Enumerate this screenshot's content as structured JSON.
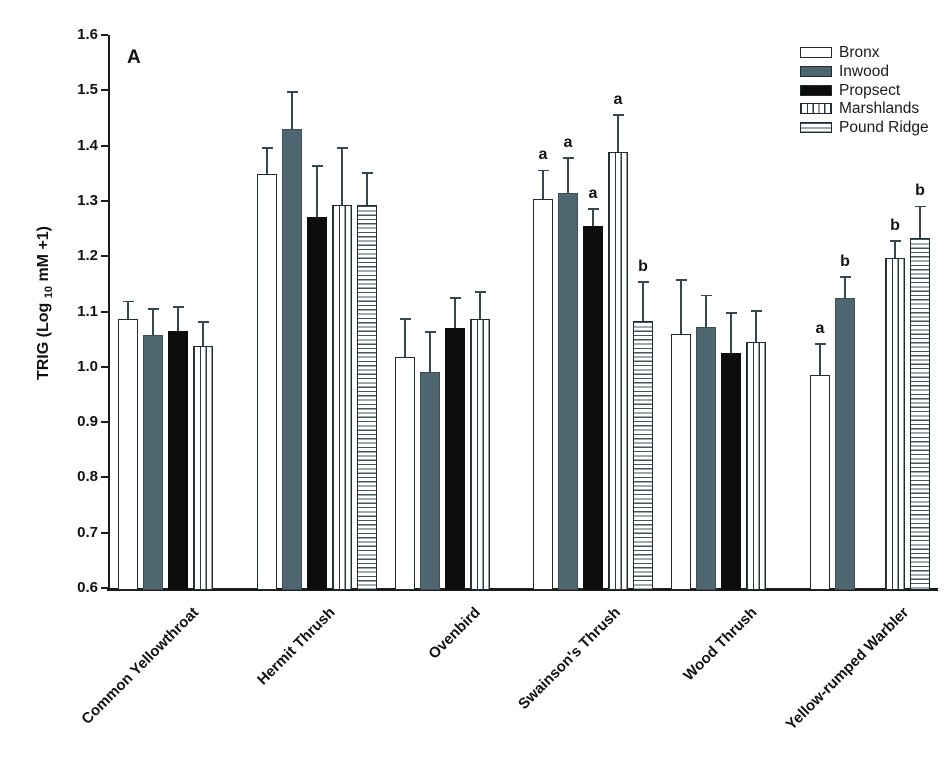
{
  "figure": {
    "panel_label": "A",
    "background_color": "#ffffff",
    "axis_color": "#1c1c1c"
  },
  "chart_data": {
    "type": "bar",
    "title": "",
    "ylabel_parts": {
      "prefix": "TRIG (Log ",
      "sub": "10",
      "suffix": " mM +1)"
    },
    "ylim": [
      0.6,
      1.6
    ],
    "grid": false,
    "legend_position": "top-right",
    "yticks": [
      "1.6",
      "1.5",
      "1.4",
      "1.3",
      "1.2",
      "1.1",
      "1.0",
      "0.9",
      "0.8",
      "0.7",
      "0.6"
    ],
    "series_names": [
      "Bronx",
      "Inwood",
      "Propsect",
      "Marshlands",
      "Pound Ridge"
    ],
    "series_styles": [
      {
        "name": "Bronx",
        "fill_class": "fill-white",
        "color": "#ffffff"
      },
      {
        "name": "Inwood",
        "fill_class": "fill-gray",
        "color": "#4d6670"
      },
      {
        "name": "Propsect",
        "fill_class": "fill-black",
        "color": "#0d0d0d"
      },
      {
        "name": "Marshlands",
        "fill_class": "fill-vstripe",
        "color": "vertical-stripes"
      },
      {
        "name": "Pound Ridge",
        "fill_class": "fill-hstripe",
        "color": "horizontal-stripes"
      }
    ],
    "categories": [
      "Common Yellowthroat",
      "Hermit Thrush",
      "Ovenbird",
      "Swainson's Thrush",
      "Wood Thrush",
      "Yellow-rumped Warbler"
    ],
    "groups": [
      {
        "label": "Common Yellowthroat",
        "x": 118,
        "label_anchor_x": 190,
        "bars": [
          {
            "site": "Bronx",
            "slot": 0,
            "value": 1.086,
            "error_top": 1.118
          },
          {
            "site": "Inwood",
            "slot": 1,
            "value": 1.057,
            "error_top": 1.104
          },
          {
            "site": "Propsect",
            "slot": 2,
            "value": 1.065,
            "error_top": 1.108
          },
          {
            "site": "Marshlands",
            "slot": 3,
            "value": 1.037,
            "error_top": 1.081
          }
        ]
      },
      {
        "label": "Hermit Thrush",
        "x": 257,
        "label_anchor_x": 327,
        "bars": [
          {
            "site": "Bronx",
            "slot": 0,
            "value": 1.348,
            "error_top": 1.395
          },
          {
            "site": "Inwood",
            "slot": 1,
            "value": 1.43,
            "error_top": 1.497
          },
          {
            "site": "Propsect",
            "slot": 2,
            "value": 1.271,
            "error_top": 1.363
          },
          {
            "site": "Marshlands",
            "slot": 3,
            "value": 1.293,
            "error_top": 1.396
          },
          {
            "site": "Pound Ridge",
            "slot": 4,
            "value": 1.292,
            "error_top": 1.351
          }
        ]
      },
      {
        "label": "Ovenbird",
        "x": 395,
        "label_anchor_x": 472,
        "bars": [
          {
            "site": "Bronx",
            "slot": 0,
            "value": 1.017,
            "error_top": 1.087
          },
          {
            "site": "Inwood",
            "slot": 1,
            "value": 0.99,
            "error_top": 1.063
          },
          {
            "site": "Propsect",
            "slot": 2,
            "value": 1.071,
            "error_top": 1.124
          },
          {
            "site": "Marshlands",
            "slot": 3,
            "value": 1.086,
            "error_top": 1.135
          }
        ]
      },
      {
        "label": "Swainson's Thrush",
        "x": 533,
        "label_anchor_x": 612,
        "bars": [
          {
            "site": "Bronx",
            "slot": 0,
            "value": 1.303,
            "error_top": 1.355,
            "sig": "a"
          },
          {
            "site": "Inwood",
            "slot": 1,
            "value": 1.314,
            "error_top": 1.377,
            "sig": "a"
          },
          {
            "site": "Propsect",
            "slot": 2,
            "value": 1.254,
            "error_top": 1.285,
            "sig": "a"
          },
          {
            "site": "Marshlands",
            "slot": 3,
            "value": 1.389,
            "error_top": 1.455,
            "sig": "a"
          },
          {
            "site": "Pound Ridge",
            "slot": 4,
            "value": 1.082,
            "error_top": 1.154,
            "sig": "b"
          }
        ]
      },
      {
        "label": "Wood Thrush",
        "x": 671,
        "label_anchor_x": 748,
        "bars": [
          {
            "site": "Bronx",
            "slot": 0,
            "value": 1.06,
            "error_top": 1.157
          },
          {
            "site": "Inwood",
            "slot": 1,
            "value": 1.072,
            "error_top": 1.129
          },
          {
            "site": "Propsect",
            "slot": 2,
            "value": 1.025,
            "error_top": 1.097
          },
          {
            "site": "Marshlands",
            "slot": 3,
            "value": 1.044,
            "error_top": 1.101
          }
        ]
      },
      {
        "label": "Yellow-rumped Warbler",
        "x": 810,
        "label_anchor_x": 900,
        "bars": [
          {
            "site": "Bronx",
            "slot": 0,
            "value": 0.986,
            "error_top": 1.041,
            "sig": "a"
          },
          {
            "site": "Inwood",
            "slot": 1,
            "value": 1.124,
            "error_top": 1.162,
            "sig": "b"
          },
          {
            "site": "Marshlands",
            "slot": 3,
            "value": 1.196,
            "error_top": 1.227,
            "sig": "b"
          },
          {
            "site": "Pound Ridge",
            "slot": 4,
            "value": 1.233,
            "error_top": 1.29,
            "sig": "b"
          }
        ]
      }
    ]
  }
}
